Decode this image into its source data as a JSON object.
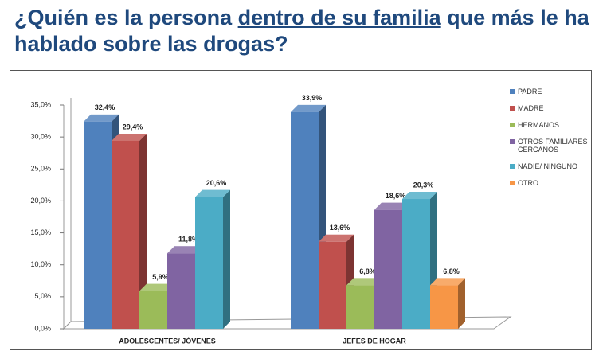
{
  "chart_data": {
    "type": "bar3d",
    "title_parts": [
      "¿Quién es la persona ",
      "dentro de su familia",
      " que más le ha",
      "hablado sobre las drogas?"
    ],
    "categories": [
      "ADOLESCENTES/ JÓVENES",
      "JEFES DE HOGAR"
    ],
    "series": [
      {
        "name": "PADRE",
        "color": "#4f81bd",
        "values": [
          32.4,
          33.9
        ],
        "value_labels": [
          "32,4%",
          "33,9%"
        ]
      },
      {
        "name": "MADRE",
        "color": "#c0504d",
        "values": [
          29.4,
          13.6
        ],
        "value_labels": [
          "29,4%",
          "13,6%"
        ]
      },
      {
        "name": "HERMANOS",
        "color": "#9bbb59",
        "values": [
          5.9,
          6.8
        ],
        "value_labels": [
          "5,9%",
          "6,8%"
        ]
      },
      {
        "name": "OTROS FAMILIARES CERCANOS",
        "color": "#8064a2",
        "values": [
          11.8,
          18.6
        ],
        "value_labels": [
          "11,8%",
          "18,6%"
        ]
      },
      {
        "name": "NADIE/ NINGUNO",
        "color": "#4bacc6",
        "values": [
          20.6,
          20.3
        ],
        "value_labels": [
          "20,6%",
          "20,3%"
        ]
      },
      {
        "name": "OTRO",
        "color": "#f79646",
        "values": [
          null,
          6.8
        ],
        "value_labels": [
          null,
          "6,8%"
        ]
      }
    ],
    "ylim": [
      0,
      35
    ],
    "yticks": [
      {
        "value": 0,
        "label": "0,0%"
      },
      {
        "value": 5,
        "label": "5,0%"
      },
      {
        "value": 10,
        "label": "10,0%"
      },
      {
        "value": 15,
        "label": "15,0%"
      },
      {
        "value": 20,
        "label": "20,0%"
      },
      {
        "value": 25,
        "label": "25,0%"
      },
      {
        "value": 30,
        "label": "30,0%"
      },
      {
        "value": 35,
        "label": "35,0%"
      }
    ],
    "legend": "right"
  }
}
